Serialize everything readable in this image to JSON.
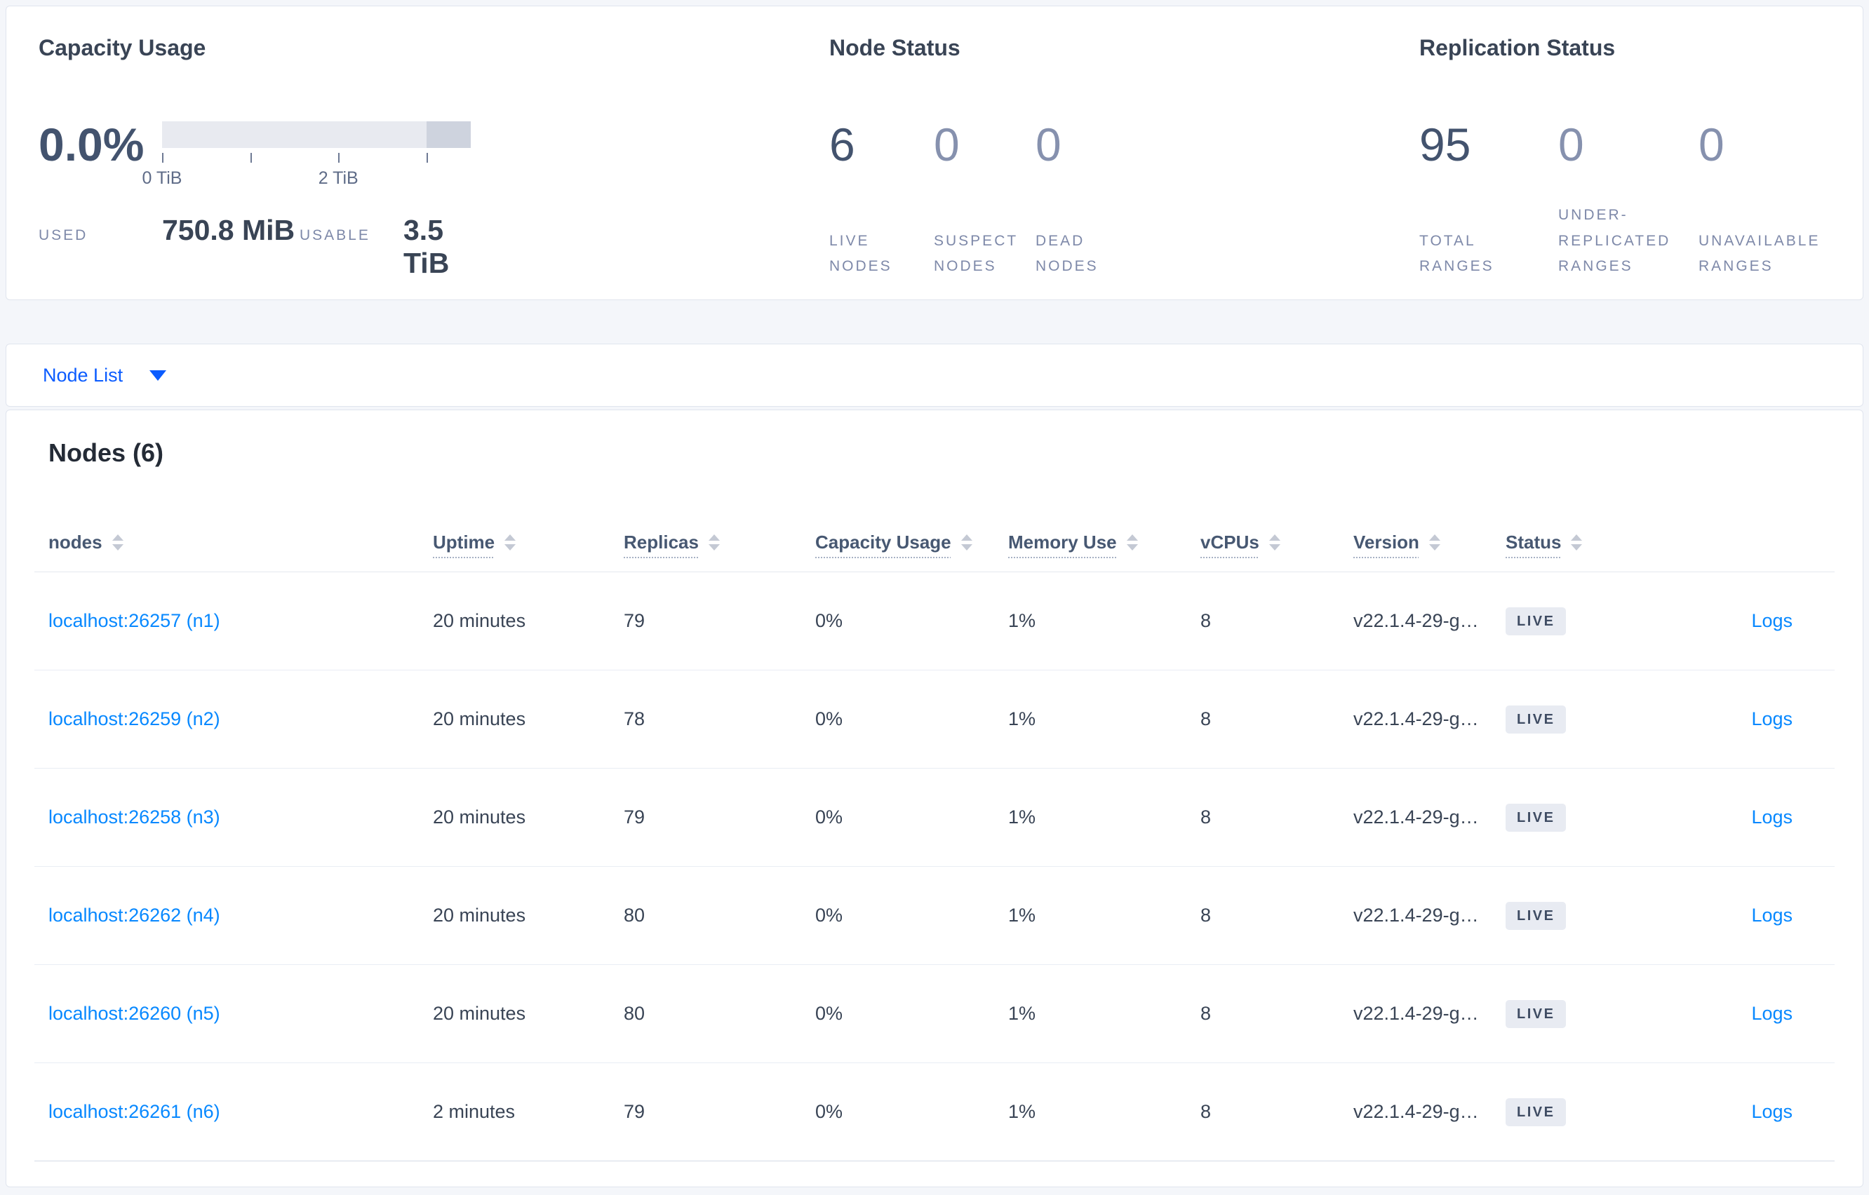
{
  "summary": {
    "capacity": {
      "title": "Capacity Usage",
      "percent": "0.0%",
      "used_label": "USED",
      "used_value": "750.8 MiB",
      "usable_label": "USABLE",
      "usable_value": "3.5 TiB",
      "chart_data": {
        "type": "bar",
        "title": "Capacity Usage",
        "percent_used": 0.0,
        "used": "750.8 MiB",
        "usable": "3.5 TiB",
        "xlim_tib": [
          0,
          3.5
        ],
        "ticks": [
          {
            "percent": 0,
            "label": "0 TiB"
          },
          {
            "percent": 28.6,
            "label": ""
          },
          {
            "percent": 57.1,
            "label": "2 TiB"
          },
          {
            "percent": 85.7,
            "label": ""
          }
        ],
        "tail_start_percent": 85.7
      }
    },
    "node_status": {
      "title": "Node Status",
      "stats": [
        {
          "value": "6",
          "label": "LIVE NODES",
          "tone": "strong"
        },
        {
          "value": "0",
          "label": "SUSPECT NODES",
          "tone": "muted"
        },
        {
          "value": "0",
          "label": "DEAD NODES",
          "tone": "muted"
        }
      ]
    },
    "replication": {
      "title": "Replication Status",
      "stats": [
        {
          "value": "95",
          "label": "TOTAL RANGES",
          "tone": "strong"
        },
        {
          "value": "0",
          "label": "UNDER-REPLICATED RANGES",
          "tone": "muted"
        },
        {
          "value": "0",
          "label": "UNAVAILABLE RANGES",
          "tone": "muted"
        }
      ]
    }
  },
  "node_list": {
    "label": "Node List"
  },
  "nodes_table": {
    "title": "Nodes (6)",
    "columns": [
      {
        "key": "address",
        "label": "nodes",
        "underlined": false,
        "sortable": true
      },
      {
        "key": "uptime",
        "label": "Uptime",
        "underlined": true,
        "sortable": true
      },
      {
        "key": "replicas",
        "label": "Replicas",
        "underlined": true,
        "sortable": true
      },
      {
        "key": "capacity",
        "label": "Capacity Usage",
        "underlined": true,
        "sortable": true
      },
      {
        "key": "memory",
        "label": "Memory Use",
        "underlined": true,
        "sortable": true
      },
      {
        "key": "vcpus",
        "label": "vCPUs",
        "underlined": true,
        "sortable": true
      },
      {
        "key": "version",
        "label": "Version",
        "underlined": true,
        "sortable": true
      },
      {
        "key": "status",
        "label": "Status",
        "underlined": true,
        "sortable": true
      },
      {
        "key": "logs",
        "label": "",
        "underlined": false,
        "sortable": false
      }
    ],
    "rows": [
      {
        "address": "localhost:26257 (n1)",
        "uptime": "20 minutes",
        "replicas": "79",
        "capacity": "0%",
        "memory": "1%",
        "vcpus": "8",
        "version": "v22.1.4-29-g…",
        "status": "LIVE",
        "logs": "Logs"
      },
      {
        "address": "localhost:26259 (n2)",
        "uptime": "20 minutes",
        "replicas": "78",
        "capacity": "0%",
        "memory": "1%",
        "vcpus": "8",
        "version": "v22.1.4-29-g…",
        "status": "LIVE",
        "logs": "Logs"
      },
      {
        "address": "localhost:26258 (n3)",
        "uptime": "20 minutes",
        "replicas": "79",
        "capacity": "0%",
        "memory": "1%",
        "vcpus": "8",
        "version": "v22.1.4-29-g…",
        "status": "LIVE",
        "logs": "Logs"
      },
      {
        "address": "localhost:26262 (n4)",
        "uptime": "20 minutes",
        "replicas": "80",
        "capacity": "0%",
        "memory": "1%",
        "vcpus": "8",
        "version": "v22.1.4-29-g…",
        "status": "LIVE",
        "logs": "Logs"
      },
      {
        "address": "localhost:26260 (n5)",
        "uptime": "20 minutes",
        "replicas": "80",
        "capacity": "0%",
        "memory": "1%",
        "vcpus": "8",
        "version": "v22.1.4-29-g…",
        "status": "LIVE",
        "logs": "Logs"
      },
      {
        "address": "localhost:26261 (n6)",
        "uptime": "2 minutes",
        "replicas": "79",
        "capacity": "0%",
        "memory": "1%",
        "vcpus": "8",
        "version": "v22.1.4-29-g…",
        "status": "LIVE",
        "logs": "Logs"
      }
    ]
  },
  "colors": {
    "accent_blue": "#0788ff",
    "selector_blue": "#0b5cff",
    "text_dark": "#394455",
    "stat_strong": "#43536e",
    "stat_muted": "#8691ae",
    "label_muted": "#7e89a9",
    "badge_bg": "#e8ebf2",
    "bar_light": "#e8eaf0",
    "bar_dark": "#ced3de",
    "page_bg": "#f4f6fa"
  }
}
